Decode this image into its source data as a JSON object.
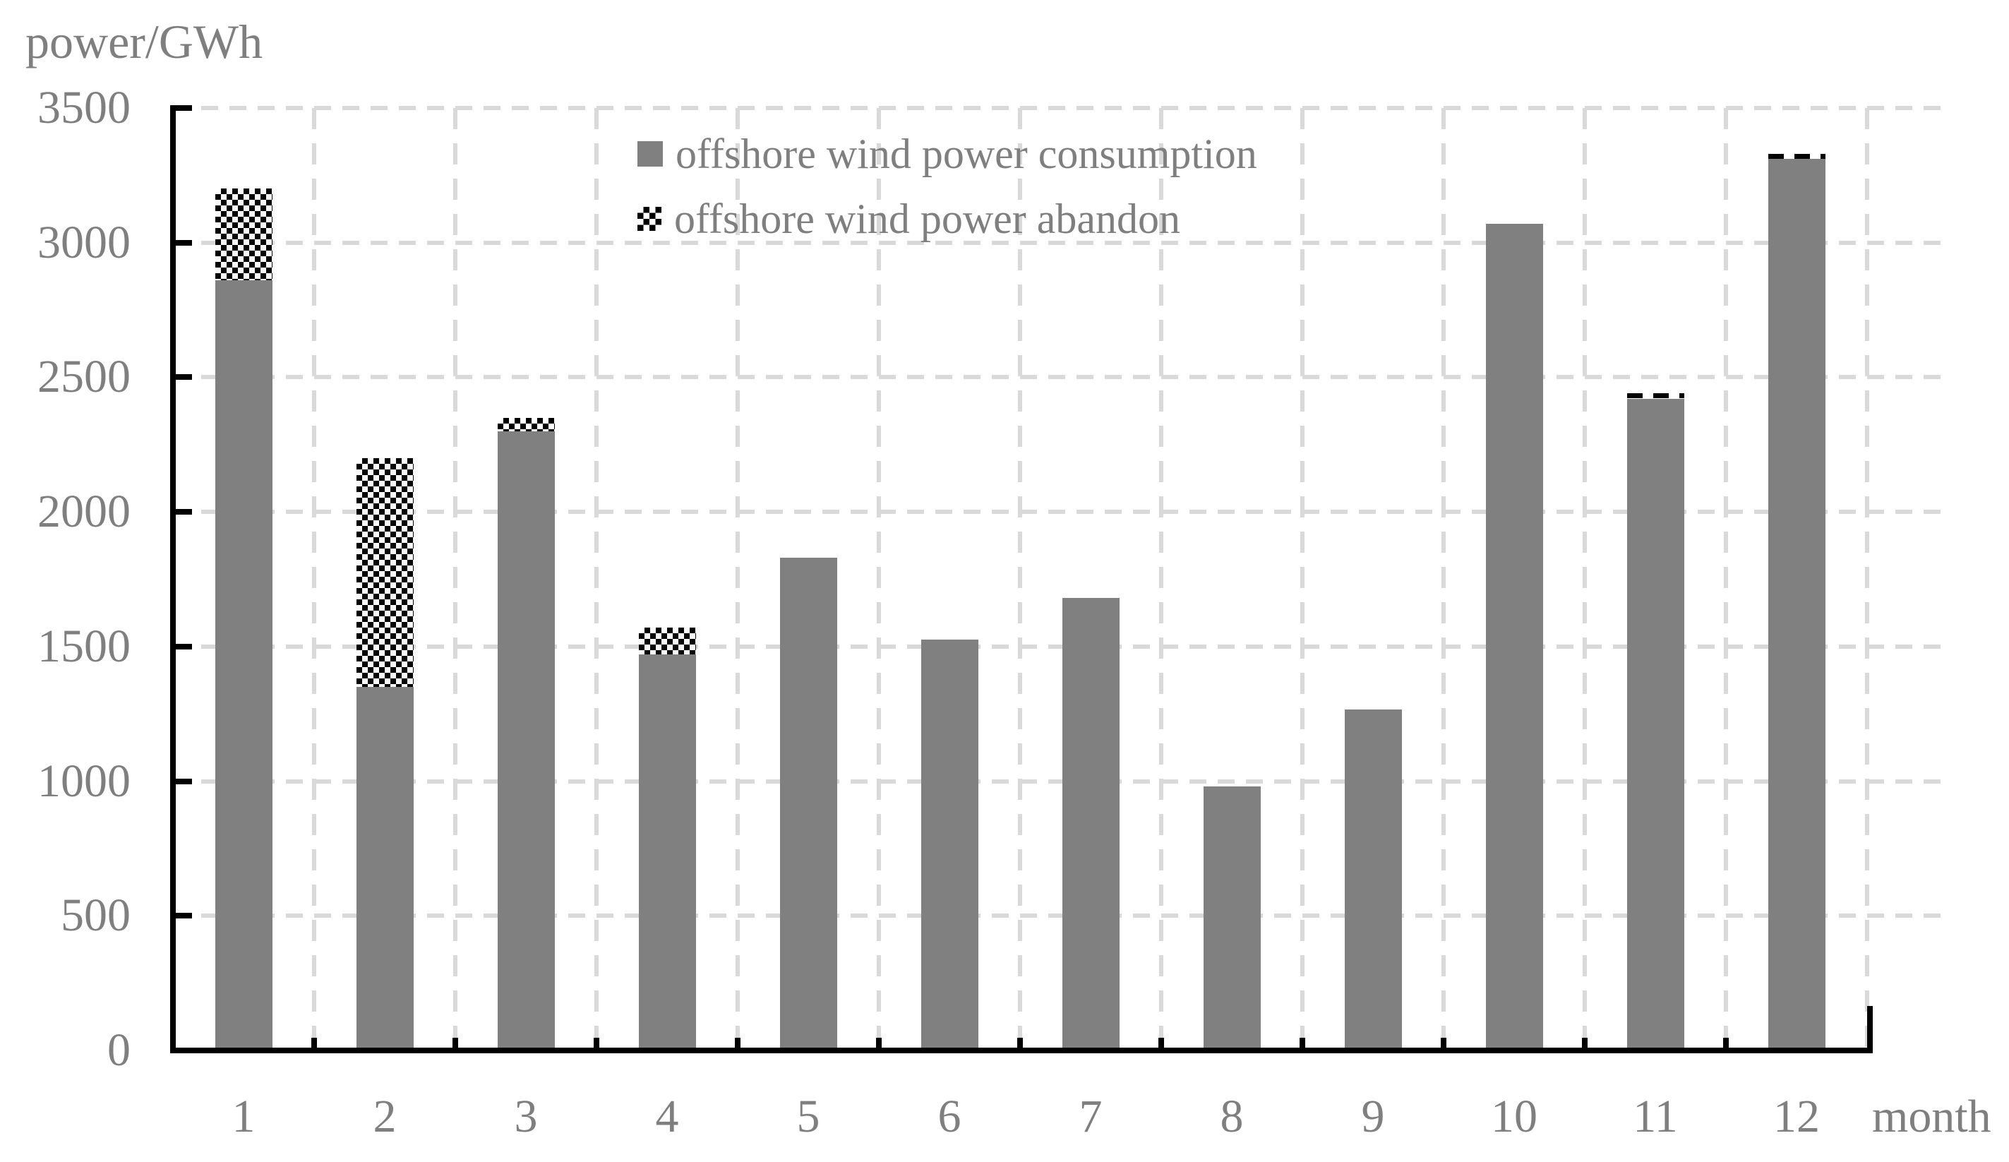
{
  "page": {
    "background": "#ffffff"
  },
  "labels": {
    "y_axis_title": "power/GWh",
    "x_axis_unit": "month"
  },
  "legend": {
    "consumption_label": "offshore wind power consumption",
    "abandon_label": "offshore wind power abandon"
  },
  "colors": {
    "bar_consumption": "#808080",
    "bar_abandon_pattern": "black-white-checker",
    "axis_line": "#000000",
    "gridline": "#d9d9d9",
    "text": "#7f7f7f",
    "background": "#ffffff"
  },
  "chart_data": {
    "type": "bar",
    "stacked": true,
    "title": "",
    "ylabel": "power/GWh",
    "xlabel": "month",
    "categories": [
      "1",
      "2",
      "3",
      "4",
      "5",
      "6",
      "7",
      "8",
      "9",
      "10",
      "11",
      "12"
    ],
    "series": [
      {
        "name": "offshore wind power consumption",
        "style": "solid-gray",
        "values": [
          2860,
          1350,
          2300,
          1470,
          1830,
          1525,
          1680,
          980,
          1265,
          3070,
          2420,
          3310
        ]
      },
      {
        "name": "offshore wind power abandon",
        "style": "black-white-checker",
        "values": [
          340,
          850,
          50,
          100,
          0,
          0,
          0,
          0,
          0,
          0,
          10,
          10
        ]
      }
    ],
    "stack_totals": [
      3200,
      2200,
      2350,
      1570,
      1830,
      1525,
      1680,
      980,
      1265,
      3070,
      2430,
      3320
    ],
    "ylim": [
      0,
      3500
    ],
    "y_ticks": [
      0,
      500,
      1000,
      1500,
      2000,
      2500,
      3000,
      3500
    ],
    "grid": "dashed",
    "legend_position": "top-center-inside"
  }
}
